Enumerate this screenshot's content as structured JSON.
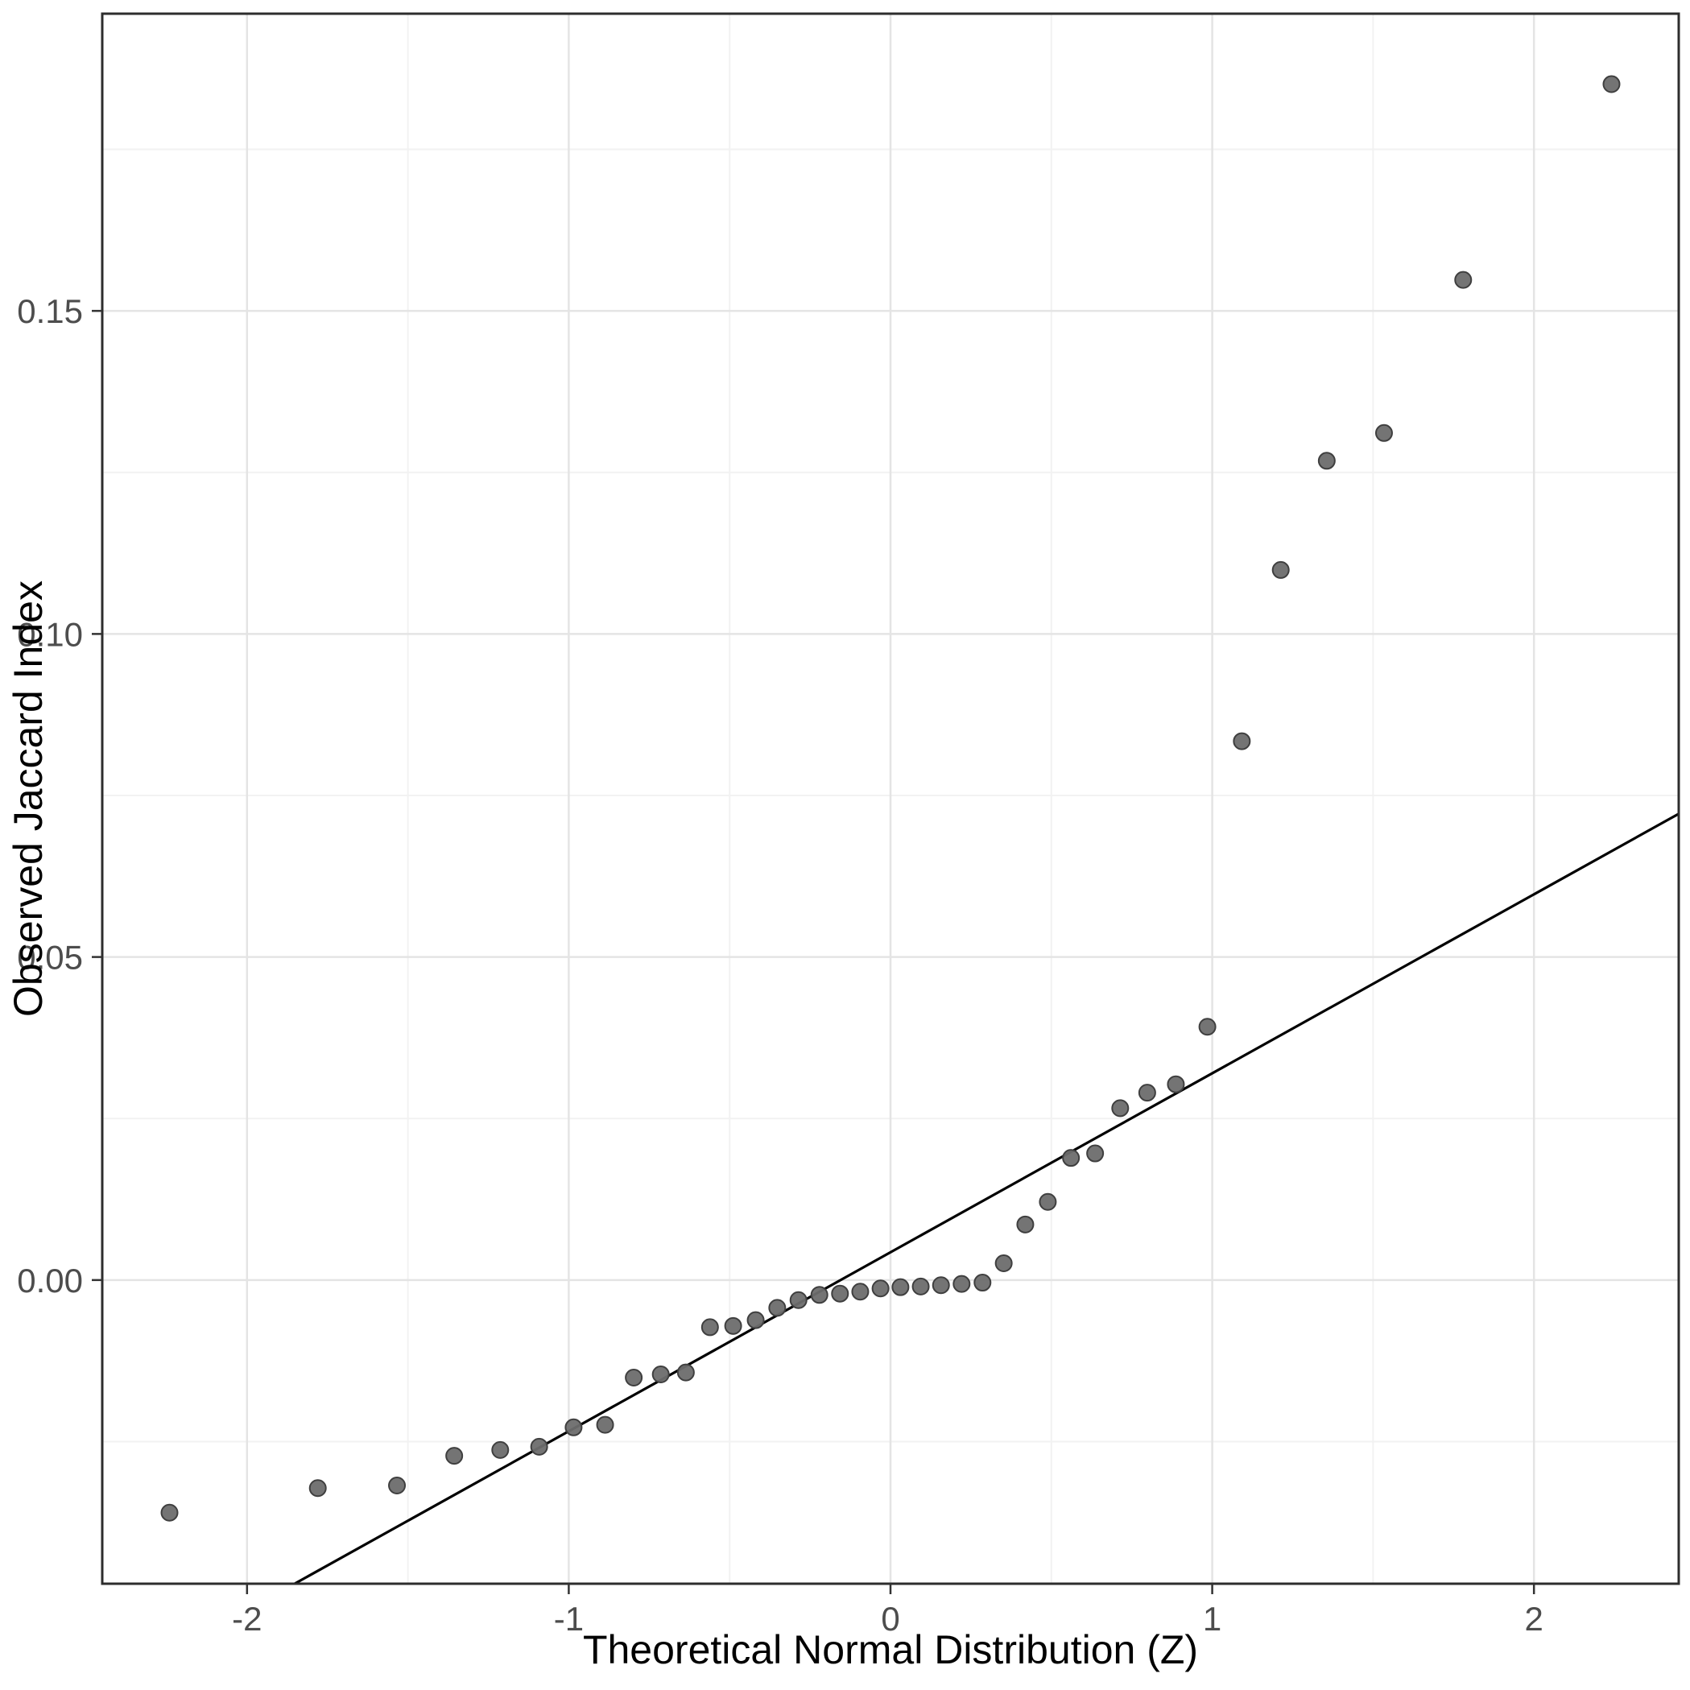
{
  "chart_data": {
    "type": "scatter",
    "xlabel": "Theoretical Normal Distribution (Z)",
    "ylabel": "Observed Jaccard Index",
    "xlim": [
      -2.45,
      2.45
    ],
    "ylim": [
      -0.047,
      0.196
    ],
    "grid": true,
    "legend_position": "none",
    "x_ticks": [
      -2,
      -1,
      0,
      1,
      2
    ],
    "x_tick_labels": [
      "-2",
      "-1",
      "0",
      "1",
      "2"
    ],
    "y_ticks": [
      0.0,
      0.05,
      0.1,
      0.15
    ],
    "y_tick_labels": [
      "0.00",
      "0.05",
      "0.10",
      "0.15"
    ],
    "x_minor_ticks": [
      -1.5,
      -0.5,
      0.5,
      1.5
    ],
    "y_minor_ticks": [
      -0.025,
      0.025,
      0.075,
      0.125,
      0.175
    ],
    "points": {
      "x": [
        -2.241,
        -1.78,
        -1.534,
        -1.356,
        -1.213,
        -1.092,
        -0.985,
        -0.887,
        -0.798,
        -0.714,
        -0.636,
        -0.561,
        -0.489,
        -0.419,
        -0.352,
        -0.286,
        -0.221,
        -0.157,
        -0.094,
        -0.031,
        0.031,
        0.094,
        0.157,
        0.221,
        0.286,
        0.352,
        0.419,
        0.489,
        0.561,
        0.636,
        0.714,
        0.798,
        0.887,
        0.985,
        1.092,
        1.213,
        1.356,
        1.534,
        1.78,
        2.241
      ],
      "y": [
        -0.036,
        -0.0322,
        -0.0318,
        -0.0272,
        -0.0263,
        -0.0258,
        -0.0228,
        -0.0224,
        -0.0151,
        -0.0146,
        -0.0143,
        -0.0073,
        -0.0071,
        -0.0062,
        -0.0043,
        -0.0031,
        -0.0023,
        -0.0021,
        -0.0018,
        -0.0013,
        -0.0011,
        -0.001,
        -0.0008,
        -0.0006,
        -0.0004,
        0.0026,
        0.0086,
        0.0121,
        0.0189,
        0.0196,
        0.0266,
        0.029,
        0.0303,
        0.0392,
        0.0834,
        0.1099,
        0.1268,
        0.1311,
        0.1548,
        0.1851
      ]
    },
    "reference_line": {
      "slope": 0.0277,
      "intercept": 0.0043
    },
    "styles": {
      "background": "#ffffff",
      "panel_border": "#2d2d2d",
      "grid_major": "#e4e4e4",
      "grid_minor": "#f2f2f2",
      "point_fill": "#6d6d6d",
      "point_stroke": "#3f3f3f",
      "line_color": "#000000",
      "tick_color": "#333333"
    }
  }
}
